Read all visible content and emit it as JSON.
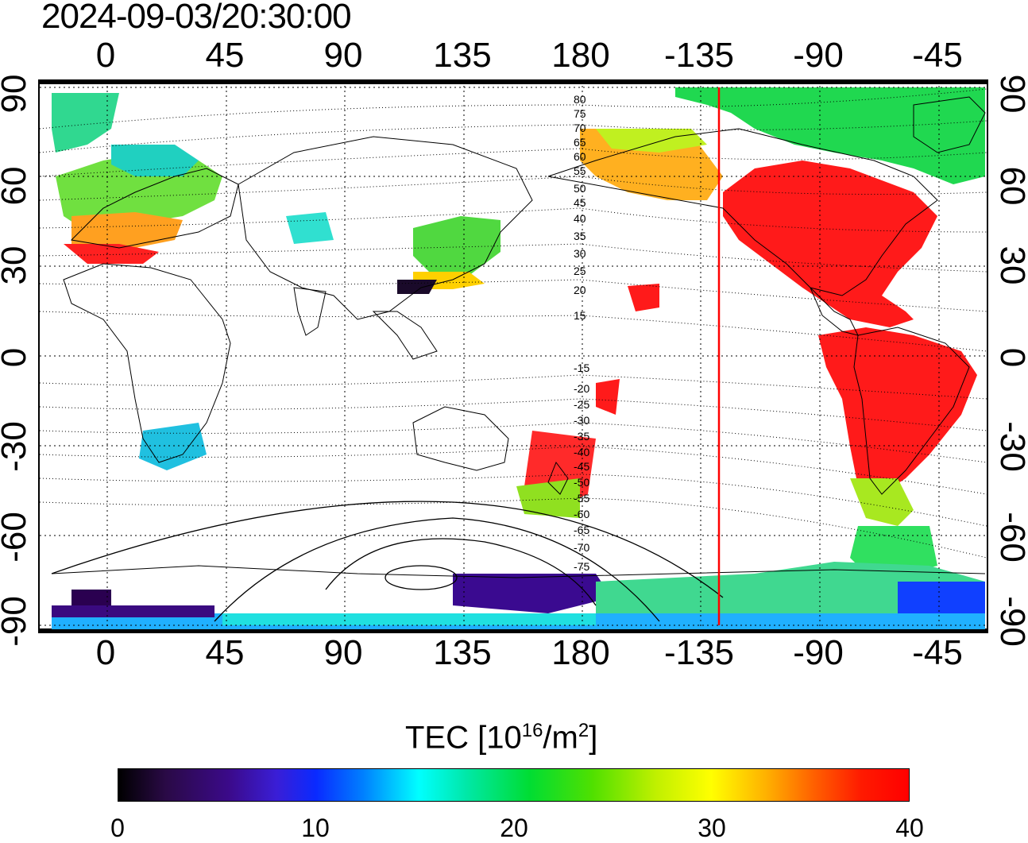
{
  "title": "2024-09-03/20:30:00",
  "map": {
    "lon_ticks_top": [
      "0",
      "45",
      "90",
      "135",
      "180",
      "-135",
      "-90",
      "-45"
    ],
    "lon_ticks_bottom": [
      "0",
      "45",
      "90",
      "135",
      "180",
      "-135",
      "-90",
      "-45"
    ],
    "lat_ticks_left": [
      "90",
      "60",
      "30",
      "0",
      "-30",
      "-60",
      "-90"
    ],
    "lat_ticks_right": [
      "90",
      "60",
      "30",
      "0",
      "-30",
      "-60",
      "-90"
    ],
    "contour_labels": [
      "80",
      "75",
      "70",
      "65",
      "60",
      "55",
      "50",
      "45",
      "40",
      "35",
      "30",
      "25",
      "20",
      "15",
      "-15",
      "-20",
      "-25",
      "-30",
      "-35",
      "-40",
      "-45",
      "-50",
      "-55",
      "-60",
      "-65",
      "-70",
      "-75"
    ],
    "terminator_lon": -139,
    "terminator_color": "#ff0000"
  },
  "colorbar": {
    "label": "TEC [10",
    "label_sup1": "16",
    "label_mid": "/m",
    "label_sup2": "2",
    "label_end": "]",
    "ticks": [
      "0",
      "10",
      "20",
      "30",
      "40"
    ],
    "min": 0,
    "max": 40
  }
}
